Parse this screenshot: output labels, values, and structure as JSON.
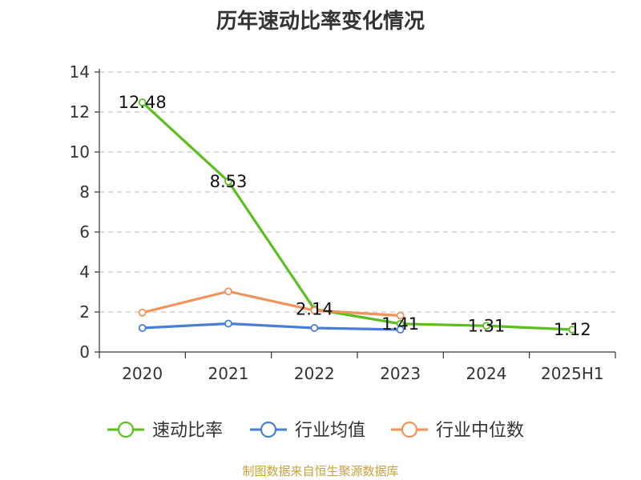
{
  "title": "历年速动比率变化情况",
  "footer": "制图数据来自恒生聚源数据库",
  "chart_data": {
    "type": "line",
    "title": "历年速动比率变化情况",
    "categories": [
      "2020",
      "2021",
      "2022",
      "2023",
      "2024",
      "2025H1"
    ],
    "ylim": [
      0,
      14
    ],
    "yticks": [
      0,
      2,
      4,
      6,
      8,
      10,
      12,
      14
    ],
    "grid": true,
    "legend_position": "bottom",
    "series": [
      {
        "name": "速动比率",
        "color": "#5cbf1f",
        "values": [
          12.48,
          8.53,
          2.14,
          1.41,
          1.31,
          1.12
        ],
        "labels": [
          "12.48",
          "8.53",
          "2.14",
          "1.41",
          "1.31",
          "1.12"
        ]
      },
      {
        "name": "行业均值",
        "color": "#4a7fd6",
        "values": [
          1.2,
          1.42,
          1.2,
          1.12,
          null,
          null
        ]
      },
      {
        "name": "行业中位数",
        "color": "#f2935c",
        "values": [
          1.97,
          3.03,
          2.08,
          1.82,
          null,
          null
        ]
      }
    ]
  }
}
